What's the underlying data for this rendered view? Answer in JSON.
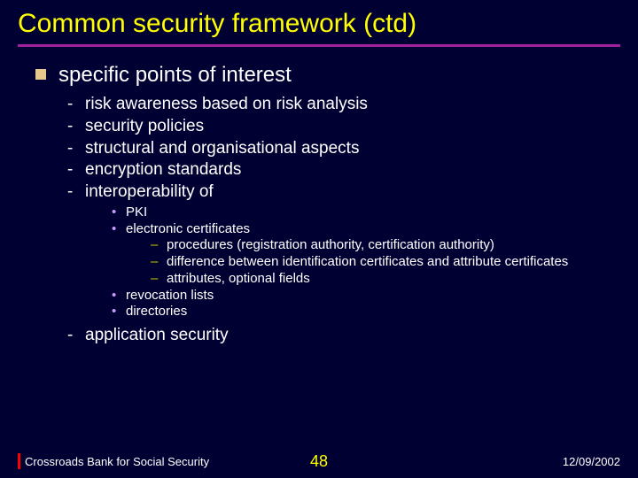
{
  "colors": {
    "background": "#000033",
    "title": "#ffff00",
    "underline": "#a020a0",
    "body_text": "#ffffff",
    "bullet_square": "#e6c88c",
    "bullet_dash": "#ffffff",
    "bullet_dot": "#cc99ff",
    "bullet_endash": "#cccc00",
    "slide_number": "#ffff00",
    "footer_bar": "#ff0000"
  },
  "title": "Common security framework (ctd)",
  "level1": "specific points of interest",
  "dash_items": [
    "risk awareness based on risk analysis",
    "security policies",
    "structural and organisational aspects",
    "encryption standards",
    "interoperability of"
  ],
  "dot_items_a": [
    "PKI",
    "electronic certificates"
  ],
  "endash_items": [
    "procedures (registration authority, certification authority)",
    "difference between identification certificates and attribute certificates",
    "attributes, optional fields"
  ],
  "dot_items_b": [
    "revocation lists",
    "directories"
  ],
  "last_dash": "application security",
  "footer": {
    "left": "Crossroads Bank for Social Security",
    "number": "48",
    "date": "12/09/2002"
  }
}
